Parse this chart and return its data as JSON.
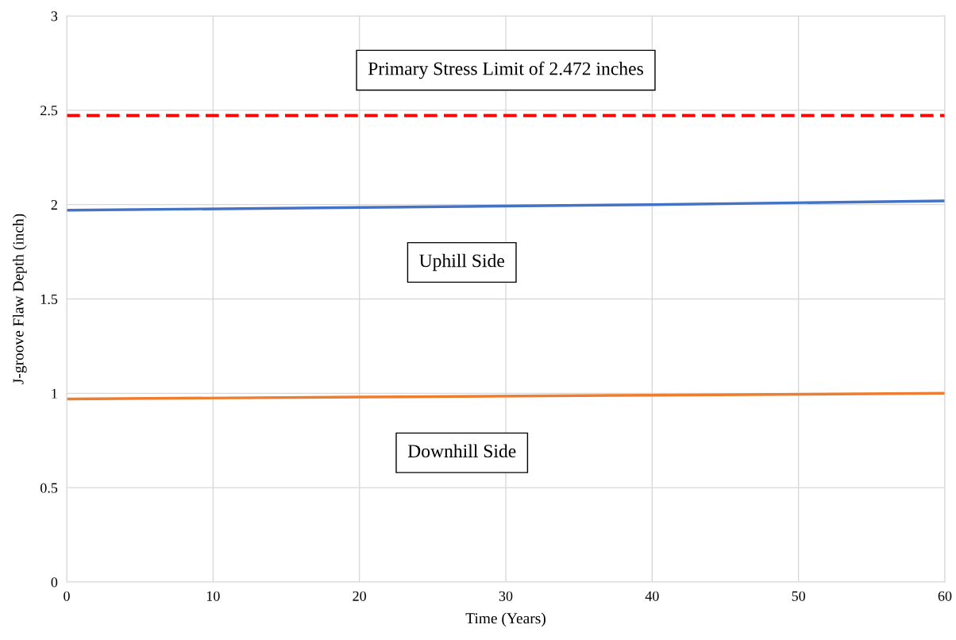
{
  "chart_data": {
    "type": "line",
    "xlabel": "Time (Years)",
    "ylabel": "J-groove Flaw Depth (inch)",
    "x": [
      0,
      20,
      40,
      60
    ],
    "series": [
      {
        "name": "Uphill Side",
        "color": "#4472c4",
        "values": [
          1.97,
          1.985,
          2.0,
          2.02
        ]
      },
      {
        "name": "Downhill Side",
        "color": "#ed7d31",
        "values": [
          0.97,
          0.98,
          0.99,
          1.0
        ]
      }
    ],
    "xlim": [
      0,
      60
    ],
    "xticks": [
      0,
      10,
      20,
      30,
      40,
      50,
      60
    ],
    "ylim": [
      0,
      3
    ],
    "yticks": [
      0,
      {
        "value": 0.5,
        "label": "0.5"
      },
      1,
      {
        "value": 1.5,
        "label": "1.5"
      },
      2,
      {
        "value": 2.5,
        "label": "2.5"
      },
      3
    ],
    "ref_lines": [
      {
        "axis": "y",
        "value": 2.472,
        "label": "Primary Stress Limit of 2.472 inches",
        "color": "#ff0000",
        "line_style": "dashed"
      }
    ],
    "grid": true,
    "legend": false,
    "marker": "none",
    "line_style": "solid"
  }
}
